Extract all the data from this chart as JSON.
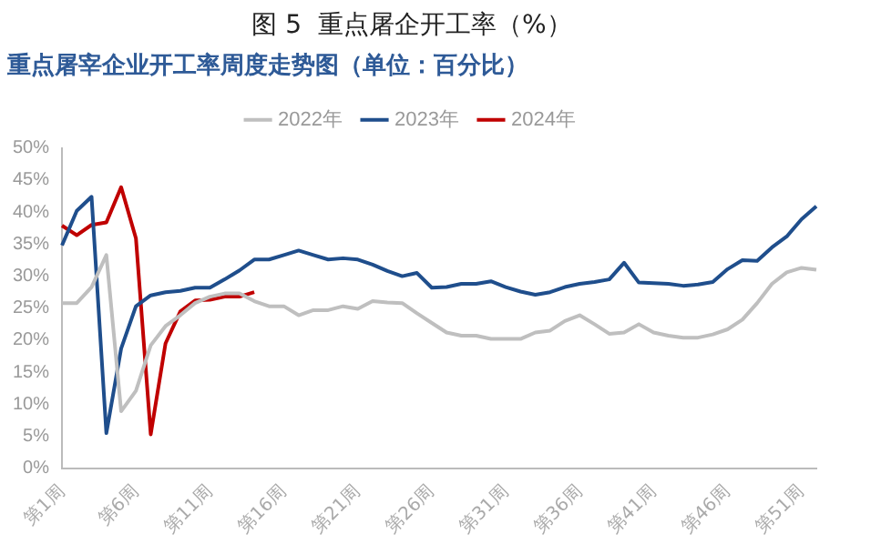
{
  "chart_data": {
    "type": "line",
    "title": "图 5  重点屠企开工率（%）",
    "subtitle": "重点屠宰企业开工率周度走势图（单位：百分比）",
    "categories": [
      "第1周",
      null,
      null,
      null,
      null,
      "第6周",
      null,
      null,
      null,
      null,
      "第11周",
      null,
      null,
      null,
      null,
      "第16周",
      null,
      null,
      null,
      null,
      "第21周",
      null,
      null,
      null,
      null,
      "第26周",
      null,
      null,
      null,
      null,
      "第31周",
      null,
      null,
      null,
      null,
      "第36周",
      null,
      null,
      null,
      null,
      "第41周",
      null,
      null,
      null,
      null,
      "第46周",
      null,
      null,
      null,
      null,
      "第51周",
      null
    ],
    "series": [
      {
        "name": "2022年",
        "color": "#bfbfbf",
        "values": [
          25.8,
          25.8,
          28.3,
          33.3,
          8.9,
          12.1,
          19.2,
          22.2,
          23.9,
          25.8,
          26.8,
          27.3,
          27.3,
          26.1,
          25.3,
          25.3,
          23.9,
          24.7,
          24.7,
          25.3,
          24.9,
          26.1,
          25.9,
          25.8,
          24.2,
          22.7,
          21.2,
          20.7,
          20.7,
          20.2,
          20.2,
          20.2,
          21.2,
          21.5,
          23.0,
          23.9,
          22.5,
          21.0,
          21.2,
          22.5,
          21.2,
          20.7,
          20.4,
          20.4,
          20.9,
          21.7,
          23.2,
          25.8,
          28.8,
          30.6,
          31.3,
          31.0
        ]
      },
      {
        "name": "2023年",
        "color": "#1f4e8c",
        "values": [
          34.8,
          40.2,
          42.4,
          5.5,
          18.7,
          25.3,
          27.0,
          27.5,
          27.7,
          28.2,
          28.2,
          29.5,
          30.9,
          32.6,
          32.6,
          33.3,
          34.0,
          33.3,
          32.6,
          32.8,
          32.6,
          31.8,
          30.8,
          30.0,
          30.5,
          28.2,
          28.3,
          28.8,
          28.8,
          29.2,
          28.3,
          27.6,
          27.1,
          27.5,
          28.3,
          28.8,
          29.1,
          29.5,
          32.1,
          29.0,
          28.9,
          28.8,
          28.5,
          28.7,
          29.1,
          31.1,
          32.5,
          32.4,
          34.5,
          36.2,
          38.9,
          40.9
        ]
      },
      {
        "name": "2024年",
        "color": "#c00000",
        "values": [
          37.9,
          36.4,
          38.0,
          38.4,
          43.9,
          35.9,
          5.3,
          19.5,
          24.5,
          26.2,
          26.3,
          26.8,
          26.8,
          27.5,
          null,
          null,
          null,
          null,
          null,
          null,
          null,
          null,
          null,
          null,
          null,
          null,
          null,
          null,
          null,
          null,
          null,
          null,
          null,
          null,
          null,
          null,
          null,
          null,
          null,
          null,
          null,
          null,
          null,
          null,
          null,
          null,
          null,
          null,
          null,
          null,
          null,
          null
        ]
      }
    ],
    "ylim": [
      0,
      50
    ],
    "yticks": [
      {
        "value": 0,
        "label": "0%"
      },
      {
        "value": 5,
        "label": "5%"
      },
      {
        "value": 10,
        "label": "10%"
      },
      {
        "value": 15,
        "label": "15%"
      },
      {
        "value": 20,
        "label": "20%"
      },
      {
        "value": 25,
        "label": "25%"
      },
      {
        "value": 30,
        "label": "30%"
      },
      {
        "value": 35,
        "label": "35%"
      },
      {
        "value": 40,
        "label": "40%"
      },
      {
        "value": 45,
        "label": "45%"
      },
      {
        "value": 50,
        "label": "50%"
      }
    ],
    "grid": false,
    "legend": "top",
    "marker": "none",
    "line_style": "solid"
  }
}
